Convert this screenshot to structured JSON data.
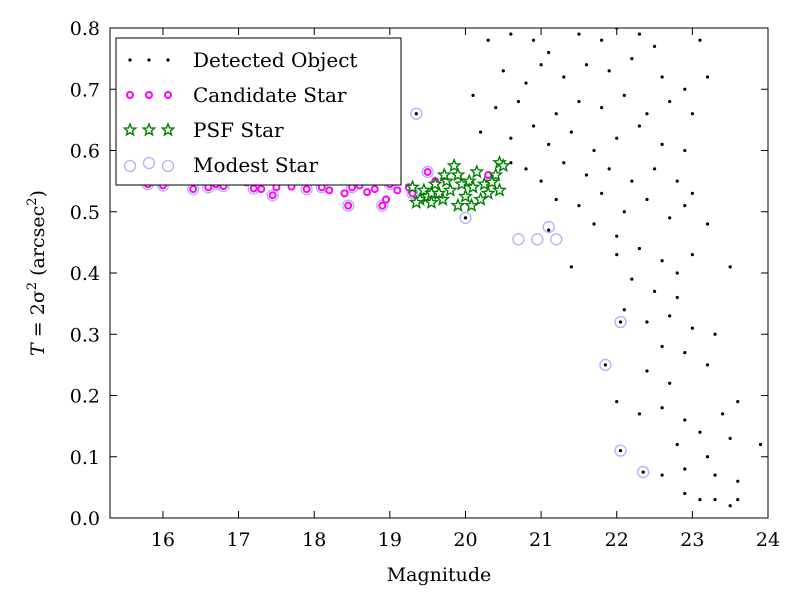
{
  "chart_data": {
    "type": "scatter",
    "xlabel": "Magnitude",
    "ylabel_parts": {
      "prefix": "T",
      "eq": " = 2σ",
      "exp": "2",
      "unit": " (arcsec",
      "unit_exp": "2",
      "close": ")"
    },
    "xlim": [
      15.3,
      24
    ],
    "ylim": [
      0.0,
      0.8
    ],
    "xticks": [
      16,
      17,
      18,
      19,
      20,
      21,
      22,
      23,
      24
    ],
    "yticks": [
      0.0,
      0.1,
      0.2,
      0.3,
      0.4,
      0.5,
      0.6,
      0.7,
      0.8
    ],
    "xtick_labels": [
      "16",
      "17",
      "18",
      "19",
      "20",
      "21",
      "22",
      "23",
      "24"
    ],
    "ytick_labels": [
      "0.0",
      "0.1",
      "0.2",
      "0.3",
      "0.4",
      "0.5",
      "0.6",
      "0.7",
      "0.8"
    ],
    "legend_position": "top-left",
    "grid": false,
    "colors": {
      "detected": "#000000",
      "candidate": "#ff00ff",
      "psf": "#008000",
      "modest": "#b0b0ff"
    },
    "series": [
      {
        "name": "Detected Object",
        "marker": "dot",
        "points": [
          [
            20.3,
            0.78
          ],
          [
            20.6,
            0.79
          ],
          [
            20.9,
            0.78
          ],
          [
            21.1,
            0.76
          ],
          [
            21.5,
            0.79
          ],
          [
            21.8,
            0.78
          ],
          [
            22.0,
            0.8
          ],
          [
            22.3,
            0.79
          ],
          [
            22.5,
            0.77
          ],
          [
            23.1,
            0.78
          ],
          [
            20.5,
            0.73
          ],
          [
            20.8,
            0.71
          ],
          [
            21.0,
            0.74
          ],
          [
            21.3,
            0.72
          ],
          [
            21.6,
            0.74
          ],
          [
            21.9,
            0.73
          ],
          [
            22.2,
            0.75
          ],
          [
            22.6,
            0.72
          ],
          [
            22.9,
            0.7
          ],
          [
            23.2,
            0.72
          ],
          [
            20.1,
            0.69
          ],
          [
            20.4,
            0.67
          ],
          [
            20.7,
            0.68
          ],
          [
            21.2,
            0.66
          ],
          [
            21.5,
            0.68
          ],
          [
            21.8,
            0.67
          ],
          [
            22.1,
            0.69
          ],
          [
            22.4,
            0.66
          ],
          [
            22.7,
            0.68
          ],
          [
            23.0,
            0.66
          ],
          [
            20.2,
            0.63
          ],
          [
            20.6,
            0.62
          ],
          [
            20.9,
            0.64
          ],
          [
            21.1,
            0.61
          ],
          [
            21.4,
            0.63
          ],
          [
            21.7,
            0.6
          ],
          [
            22.0,
            0.62
          ],
          [
            22.3,
            0.64
          ],
          [
            22.6,
            0.61
          ],
          [
            22.9,
            0.6
          ],
          [
            20.6,
            0.58
          ],
          [
            20.8,
            0.57
          ],
          [
            21.0,
            0.55
          ],
          [
            21.3,
            0.58
          ],
          [
            21.6,
            0.56
          ],
          [
            21.9,
            0.57
          ],
          [
            22.2,
            0.55
          ],
          [
            22.5,
            0.57
          ],
          [
            22.8,
            0.55
          ],
          [
            23.0,
            0.53
          ],
          [
            21.2,
            0.52
          ],
          [
            21.5,
            0.51
          ],
          [
            21.8,
            0.53
          ],
          [
            22.1,
            0.5
          ],
          [
            22.4,
            0.52
          ],
          [
            22.7,
            0.49
          ],
          [
            22.9,
            0.51
          ],
          [
            23.2,
            0.48
          ],
          [
            21.7,
            0.48
          ],
          [
            22.0,
            0.46
          ],
          [
            21.4,
            0.41
          ],
          [
            22.0,
            0.43
          ],
          [
            22.3,
            0.44
          ],
          [
            22.6,
            0.42
          ],
          [
            22.8,
            0.4
          ],
          [
            23.0,
            0.43
          ],
          [
            23.5,
            0.41
          ],
          [
            22.2,
            0.39
          ],
          [
            22.5,
            0.37
          ],
          [
            22.8,
            0.36
          ],
          [
            22.1,
            0.34
          ],
          [
            22.4,
            0.32
          ],
          [
            22.7,
            0.33
          ],
          [
            23.0,
            0.31
          ],
          [
            23.3,
            0.3
          ],
          [
            22.6,
            0.28
          ],
          [
            22.9,
            0.27
          ],
          [
            23.2,
            0.25
          ],
          [
            22.4,
            0.24
          ],
          [
            22.7,
            0.22
          ],
          [
            22.0,
            0.19
          ],
          [
            22.3,
            0.17
          ],
          [
            22.6,
            0.18
          ],
          [
            22.9,
            0.16
          ],
          [
            23.1,
            0.14
          ],
          [
            23.4,
            0.17
          ],
          [
            23.6,
            0.19
          ],
          [
            22.8,
            0.12
          ],
          [
            23.2,
            0.1
          ],
          [
            23.5,
            0.13
          ],
          [
            22.9,
            0.08
          ],
          [
            23.3,
            0.07
          ],
          [
            23.6,
            0.06
          ],
          [
            23.9,
            0.12
          ],
          [
            22.9,
            0.04
          ],
          [
            23.1,
            0.03
          ],
          [
            23.3,
            0.03
          ],
          [
            23.5,
            0.02
          ],
          [
            23.6,
            0.03
          ],
          [
            22.6,
            0.07
          ],
          [
            19.35,
            0.66
          ],
          [
            21.85,
            0.25
          ],
          [
            22.05,
            0.32
          ],
          [
            22.05,
            0.11
          ],
          [
            22.35,
            0.075
          ],
          [
            21.1,
            0.47
          ],
          [
            20.0,
            0.49
          ]
        ]
      },
      {
        "name": "Candidate Star",
        "marker": "magenta-circle",
        "points": [
          [
            15.8,
            0.545
          ],
          [
            16.0,
            0.543
          ],
          [
            16.4,
            0.537
          ],
          [
            16.6,
            0.54
          ],
          [
            16.7,
            0.545
          ],
          [
            16.8,
            0.542
          ],
          [
            17.1,
            0.548
          ],
          [
            17.2,
            0.538
          ],
          [
            17.3,
            0.537
          ],
          [
            17.5,
            0.54
          ],
          [
            17.45,
            0.527
          ],
          [
            17.7,
            0.541
          ],
          [
            17.9,
            0.537
          ],
          [
            18.1,
            0.54
          ],
          [
            18.2,
            0.535
          ],
          [
            18.4,
            0.53
          ],
          [
            18.45,
            0.51
          ],
          [
            18.5,
            0.54
          ],
          [
            18.6,
            0.543
          ],
          [
            18.7,
            0.532
          ],
          [
            18.8,
            0.537
          ],
          [
            18.9,
            0.51
          ],
          [
            18.95,
            0.52
          ],
          [
            19.0,
            0.545
          ],
          [
            19.1,
            0.535
          ],
          [
            19.25,
            0.54
          ],
          [
            19.3,
            0.53
          ],
          [
            19.5,
            0.565
          ],
          [
            19.6,
            0.55
          ],
          [
            20.3,
            0.56
          ]
        ]
      },
      {
        "name": "PSF Star",
        "marker": "green-star",
        "points": [
          [
            19.3,
            0.54
          ],
          [
            19.4,
            0.52
          ],
          [
            19.45,
            0.535
          ],
          [
            19.5,
            0.525
          ],
          [
            19.55,
            0.53
          ],
          [
            19.6,
            0.545
          ],
          [
            19.7,
            0.52
          ],
          [
            19.75,
            0.55
          ],
          [
            19.8,
            0.535
          ],
          [
            19.85,
            0.575
          ],
          [
            19.9,
            0.51
          ],
          [
            19.95,
            0.545
          ],
          [
            20.0,
            0.525
          ],
          [
            20.05,
            0.55
          ],
          [
            20.1,
            0.54
          ],
          [
            20.15,
            0.565
          ],
          [
            20.2,
            0.52
          ],
          [
            20.25,
            0.545
          ],
          [
            20.3,
            0.53
          ],
          [
            20.4,
            0.56
          ],
          [
            20.45,
            0.58
          ],
          [
            20.5,
            0.575
          ],
          [
            20.45,
            0.535
          ],
          [
            19.35,
            0.515
          ],
          [
            19.65,
            0.53
          ],
          [
            19.72,
            0.56
          ],
          [
            20.08,
            0.51
          ],
          [
            20.35,
            0.548
          ],
          [
            19.55,
            0.515
          ],
          [
            19.9,
            0.56
          ]
        ]
      },
      {
        "name": "Modest Star",
        "marker": "lavender-circle",
        "points": [
          [
            15.8,
            0.545
          ],
          [
            16.0,
            0.543
          ],
          [
            16.4,
            0.537
          ],
          [
            16.6,
            0.54
          ],
          [
            16.7,
            0.545
          ],
          [
            16.8,
            0.542
          ],
          [
            17.2,
            0.538
          ],
          [
            17.45,
            0.527
          ],
          [
            17.9,
            0.537
          ],
          [
            18.1,
            0.54
          ],
          [
            18.45,
            0.51
          ],
          [
            18.5,
            0.54
          ],
          [
            18.9,
            0.51
          ],
          [
            19.0,
            0.545
          ],
          [
            19.3,
            0.53
          ],
          [
            19.5,
            0.565
          ],
          [
            19.35,
            0.66
          ],
          [
            20.0,
            0.49
          ],
          [
            20.7,
            0.455
          ],
          [
            20.95,
            0.455
          ],
          [
            21.1,
            0.475
          ],
          [
            21.2,
            0.455
          ],
          [
            21.85,
            0.25
          ],
          [
            22.05,
            0.32
          ],
          [
            22.05,
            0.11
          ],
          [
            22.35,
            0.075
          ]
        ]
      }
    ]
  }
}
